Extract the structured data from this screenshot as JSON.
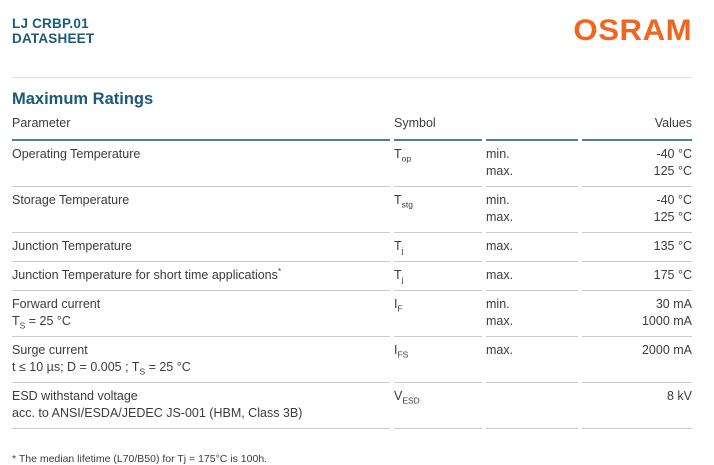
{
  "header": {
    "product_name": "LJ CRBP.01",
    "doc_type": "DATASHEET",
    "logo_text": "OSRAM"
  },
  "colors": {
    "brand_teal": "#1B5A78",
    "brand_orange": "#F0651F",
    "table_header_rule": "#507E92",
    "row_divider": "#C8CDD0",
    "page_rule": "#DDE3E7",
    "body_text": "#3C3C3C"
  },
  "section": {
    "title": "Maximum Ratings"
  },
  "table": {
    "headers": {
      "parameter": "Parameter",
      "symbol": "Symbol",
      "values": "Values"
    },
    "rows": [
      {
        "parameter": "Operating Temperature",
        "symbol": {
          "base": "T",
          "sub": "op"
        },
        "entries": [
          {
            "limit": "min.",
            "value": "-40 °C"
          },
          {
            "limit": "max.",
            "value": "125 °C"
          }
        ]
      },
      {
        "parameter": "Storage Temperature",
        "symbol": {
          "base": "T",
          "sub": "stg"
        },
        "entries": [
          {
            "limit": "min.",
            "value": "-40 °C"
          },
          {
            "limit": "max.",
            "value": "125 °C"
          }
        ]
      },
      {
        "parameter": "Junction Temperature",
        "symbol": {
          "base": "T",
          "sub": "j"
        },
        "entries": [
          {
            "limit": "max.",
            "value": "135 °C"
          }
        ]
      },
      {
        "parameter": "Junction Temperature for short time applications",
        "parameter_sup": "*",
        "symbol": {
          "base": "T",
          "sub": "j"
        },
        "entries": [
          {
            "limit": "max.",
            "value": "175 °C"
          }
        ]
      },
      {
        "parameter": "Forward current",
        "condition": [
          {
            "text": "T"
          },
          {
            "sub": "S"
          },
          {
            "text": " = 25 °C"
          }
        ],
        "symbol": {
          "base": "I",
          "sub": "F"
        },
        "entries": [
          {
            "limit": "min.",
            "value": "30 mA"
          },
          {
            "limit": "max.",
            "value": "1000 mA"
          }
        ]
      },
      {
        "parameter": "Surge current",
        "condition": [
          {
            "text": "t ≤ 10 µs; D = 0.005 ; T"
          },
          {
            "sub": "S"
          },
          {
            "text": " = 25 °C"
          }
        ],
        "symbol": {
          "base": "I",
          "sub": "FS"
        },
        "entries": [
          {
            "limit": "max.",
            "value": "2000 mA"
          }
        ]
      },
      {
        "parameter": "ESD withstand voltage",
        "condition": [
          {
            "text": "acc. to ANSI/ESDA/JEDEC JS-001 (HBM, Class 3B)"
          }
        ],
        "symbol": {
          "base": "V",
          "sub": "ESD"
        },
        "entries": [
          {
            "limit": "",
            "value": "8 kV"
          }
        ]
      }
    ]
  },
  "footnote": {
    "text": "* The median lifetime (L70/B50) for Tj = 175°C is 100h."
  }
}
